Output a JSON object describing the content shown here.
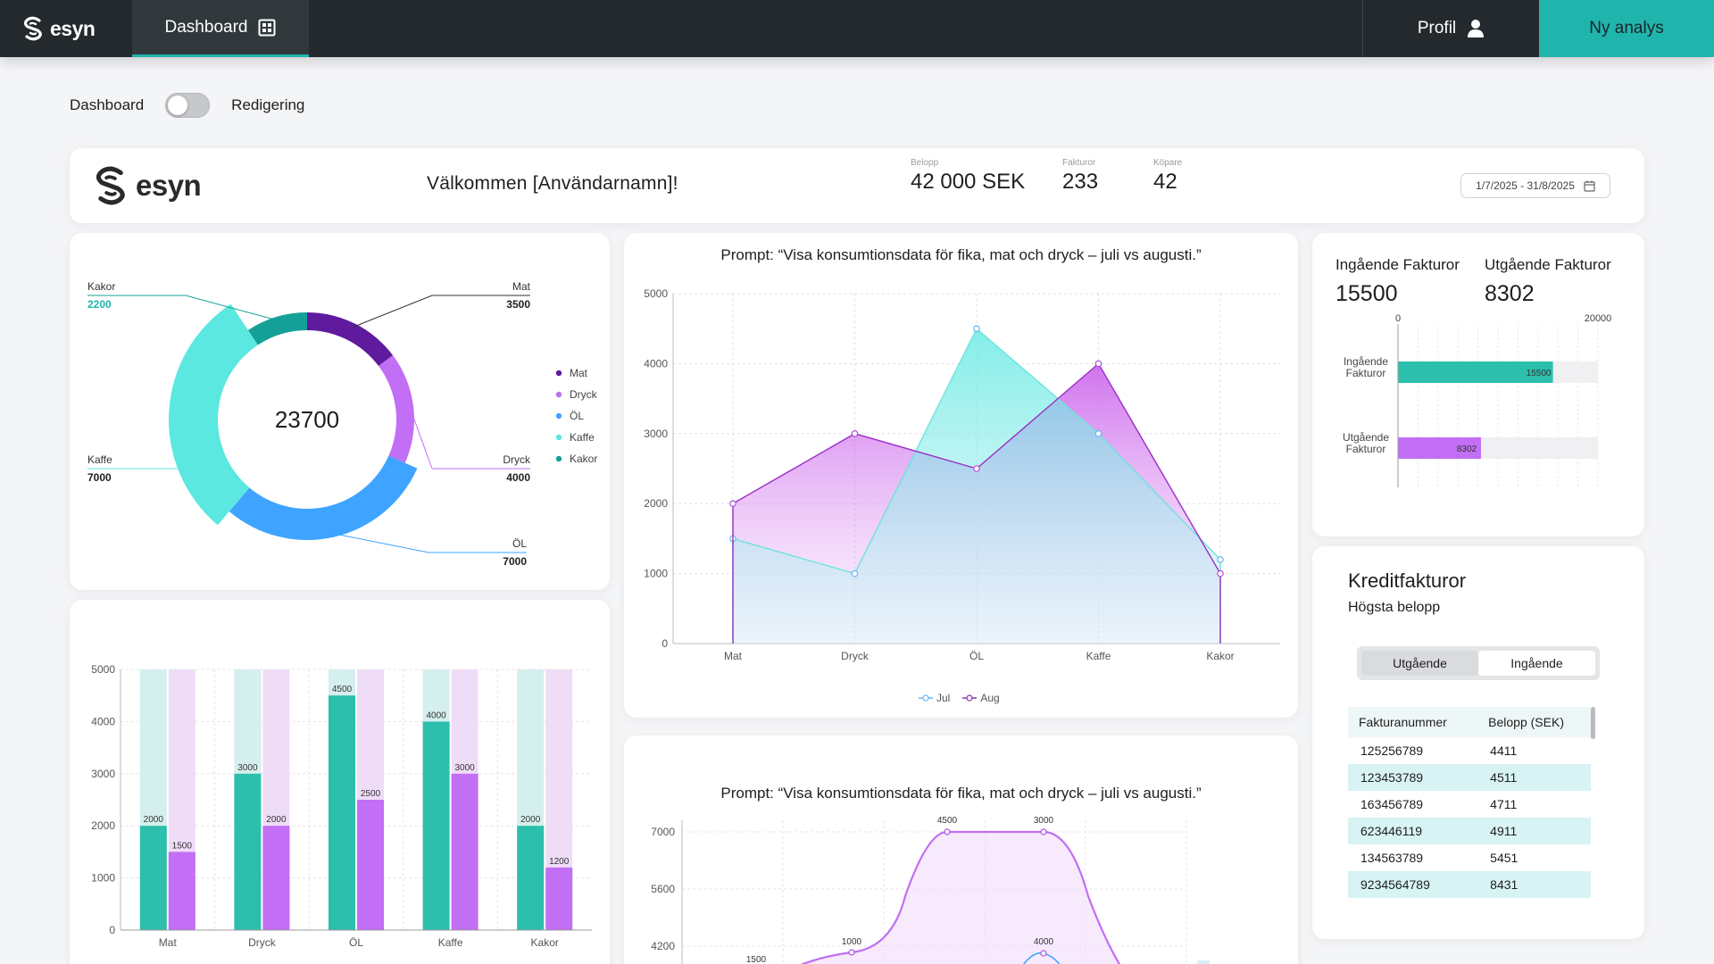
{
  "topbar": {
    "logo_text": "esyn",
    "nav_tab_label": "Dashboard",
    "profile_label": "Profil",
    "new_analysis_label": "Ny analys"
  },
  "mode_toggle": {
    "left_label": "Dashboard",
    "right_label": "Redigering"
  },
  "header": {
    "logo_text": "esyn",
    "welcome": "Välkommen [Användarnamn]!",
    "stats": [
      {
        "label": "Belopp",
        "value": "42 000 SEK"
      },
      {
        "label": "Fakturor",
        "value": "233"
      },
      {
        "label": "Köpare",
        "value": "42"
      }
    ],
    "date_range": "1/7/2025 - 31/8/2025"
  },
  "colors": {
    "teal": "#1fb5ad",
    "purple_dark": "#5f1a9d",
    "purple_light": "#c26ef5",
    "blue": "#3ea4ff",
    "aqua": "#5ae8e0",
    "dark_teal": "#14a097",
    "topbar": "#23292c"
  },
  "invoices": {
    "incoming_label": "Ingående Fakturor",
    "incoming_value": "15500",
    "outgoing_label": "Utgående Fakturor",
    "outgoing_value": "8302"
  },
  "credit": {
    "title": "Kreditfakturor",
    "subtitle": "Högsta belopp",
    "tabs": [
      "Utgående",
      "Ingående"
    ],
    "columns": [
      "Fakturanummer",
      "Belopp (SEK)"
    ],
    "rows": [
      [
        "125256789",
        "4411"
      ],
      [
        "123453789",
        "4511"
      ],
      [
        "163456789",
        "4711"
      ],
      [
        "623446119",
        "4911"
      ],
      [
        "134563789",
        "5451"
      ],
      [
        "9234564789",
        "8431"
      ]
    ]
  },
  "chart_data": [
    {
      "type": "pie",
      "center_label": "23700",
      "slices": [
        {
          "name": "Mat",
          "value": 3500,
          "color": "#5f1a9d"
        },
        {
          "name": "Dryck",
          "value": 4000,
          "color": "#c26ef5"
        },
        {
          "name": "ÖL",
          "value": 7000,
          "color": "#3ea4ff"
        },
        {
          "name": "Kaffe",
          "value": 7000,
          "color": "#5ae8e0"
        },
        {
          "name": "Kakor",
          "value": 2200,
          "color": "#14a097"
        }
      ],
      "legend": [
        "Mat",
        "Dryck",
        "ÖL",
        "Kaffe",
        "Kakor"
      ],
      "legend_placement": "right"
    },
    {
      "type": "area",
      "title": "Prompt: “Visa konsumtionsdata för fika, mat och dryck – juli vs augusti.”",
      "categories": [
        "Mat",
        "Dryck",
        "ÖL",
        "Kaffe",
        "Kakor"
      ],
      "series": [
        {
          "name": "Jul",
          "values": [
            1500,
            1000,
            4500,
            3000,
            1200
          ],
          "color": "#5ae8e0"
        },
        {
          "name": "Aug",
          "values": [
            2000,
            3000,
            2500,
            4000,
            1000
          ],
          "color": "#b04ee0"
        }
      ],
      "yticks": [
        0,
        1000,
        2000,
        3000,
        4000,
        5000
      ],
      "ylim": [
        0,
        5000
      ],
      "grid": true,
      "legend_placement": "bottom"
    },
    {
      "type": "bar",
      "categories": [
        "Mat",
        "Dryck",
        "ÖL",
        "Kaffe",
        "Kakor"
      ],
      "series": [
        {
          "values": [
            2000,
            3000,
            4500,
            4000,
            2000
          ],
          "color": "#2bbfac"
        },
        {
          "values": [
            1500,
            2000,
            2500,
            3000,
            1200
          ],
          "color": "#c26ef5"
        }
      ],
      "yticks": [
        0,
        1000,
        2000,
        3000,
        4000,
        5000
      ],
      "ylim": [
        0,
        5000
      ],
      "grid": true
    },
    {
      "type": "bar",
      "orientation": "horizontal",
      "categories": [
        "Ingående\nFakturor",
        "Utgående\nFakturor"
      ],
      "values": [
        15500,
        8302
      ],
      "value_labels": [
        "15500",
        "8302"
      ],
      "xticks": [
        "0",
        "20000"
      ],
      "xlim": [
        0,
        20000
      ]
    },
    {
      "type": "line",
      "title": "Prompt: “Visa konsumtionsdata för fika, mat och dryck – juli vs augusti.”",
      "yticks": [
        4200,
        5600,
        7000
      ],
      "point_labels": [
        "1500",
        "1000",
        "4500",
        "3000",
        "4000"
      ],
      "grid": true
    }
  ]
}
